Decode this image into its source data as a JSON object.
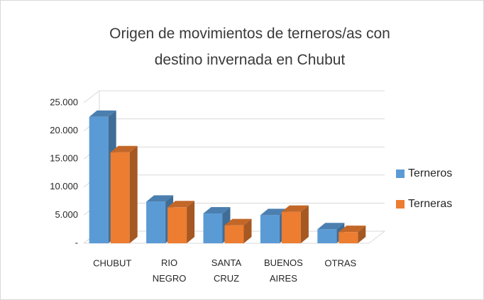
{
  "chart_data": {
    "type": "bar3d",
    "title": "Origen de movimientos de terneros/as con destino invernada en Chubut",
    "categories": [
      "CHUBUT",
      "RIO NEGRO",
      "SANTA CRUZ",
      "BUENOS AIRES",
      "OTRAS"
    ],
    "series": [
      {
        "name": "Terneros",
        "color": "#5b9bd5",
        "values": [
          22500,
          7400,
          5300,
          5000,
          2500
        ]
      },
      {
        "name": "Terneras",
        "color": "#ed7d31",
        "values": [
          16200,
          6400,
          3200,
          5600,
          2000
        ]
      }
    ],
    "ylim": [
      0,
      25000
    ],
    "yticks": [
      {
        "value": 0,
        "label": "-"
      },
      {
        "value": 5000,
        "label": "5.000"
      },
      {
        "value": 10000,
        "label": "10.000"
      },
      {
        "value": 15000,
        "label": "15.000"
      },
      {
        "value": 20000,
        "label": "20.000"
      },
      {
        "value": 25000,
        "label": "25.000"
      }
    ],
    "grid": true,
    "legend": "right"
  }
}
